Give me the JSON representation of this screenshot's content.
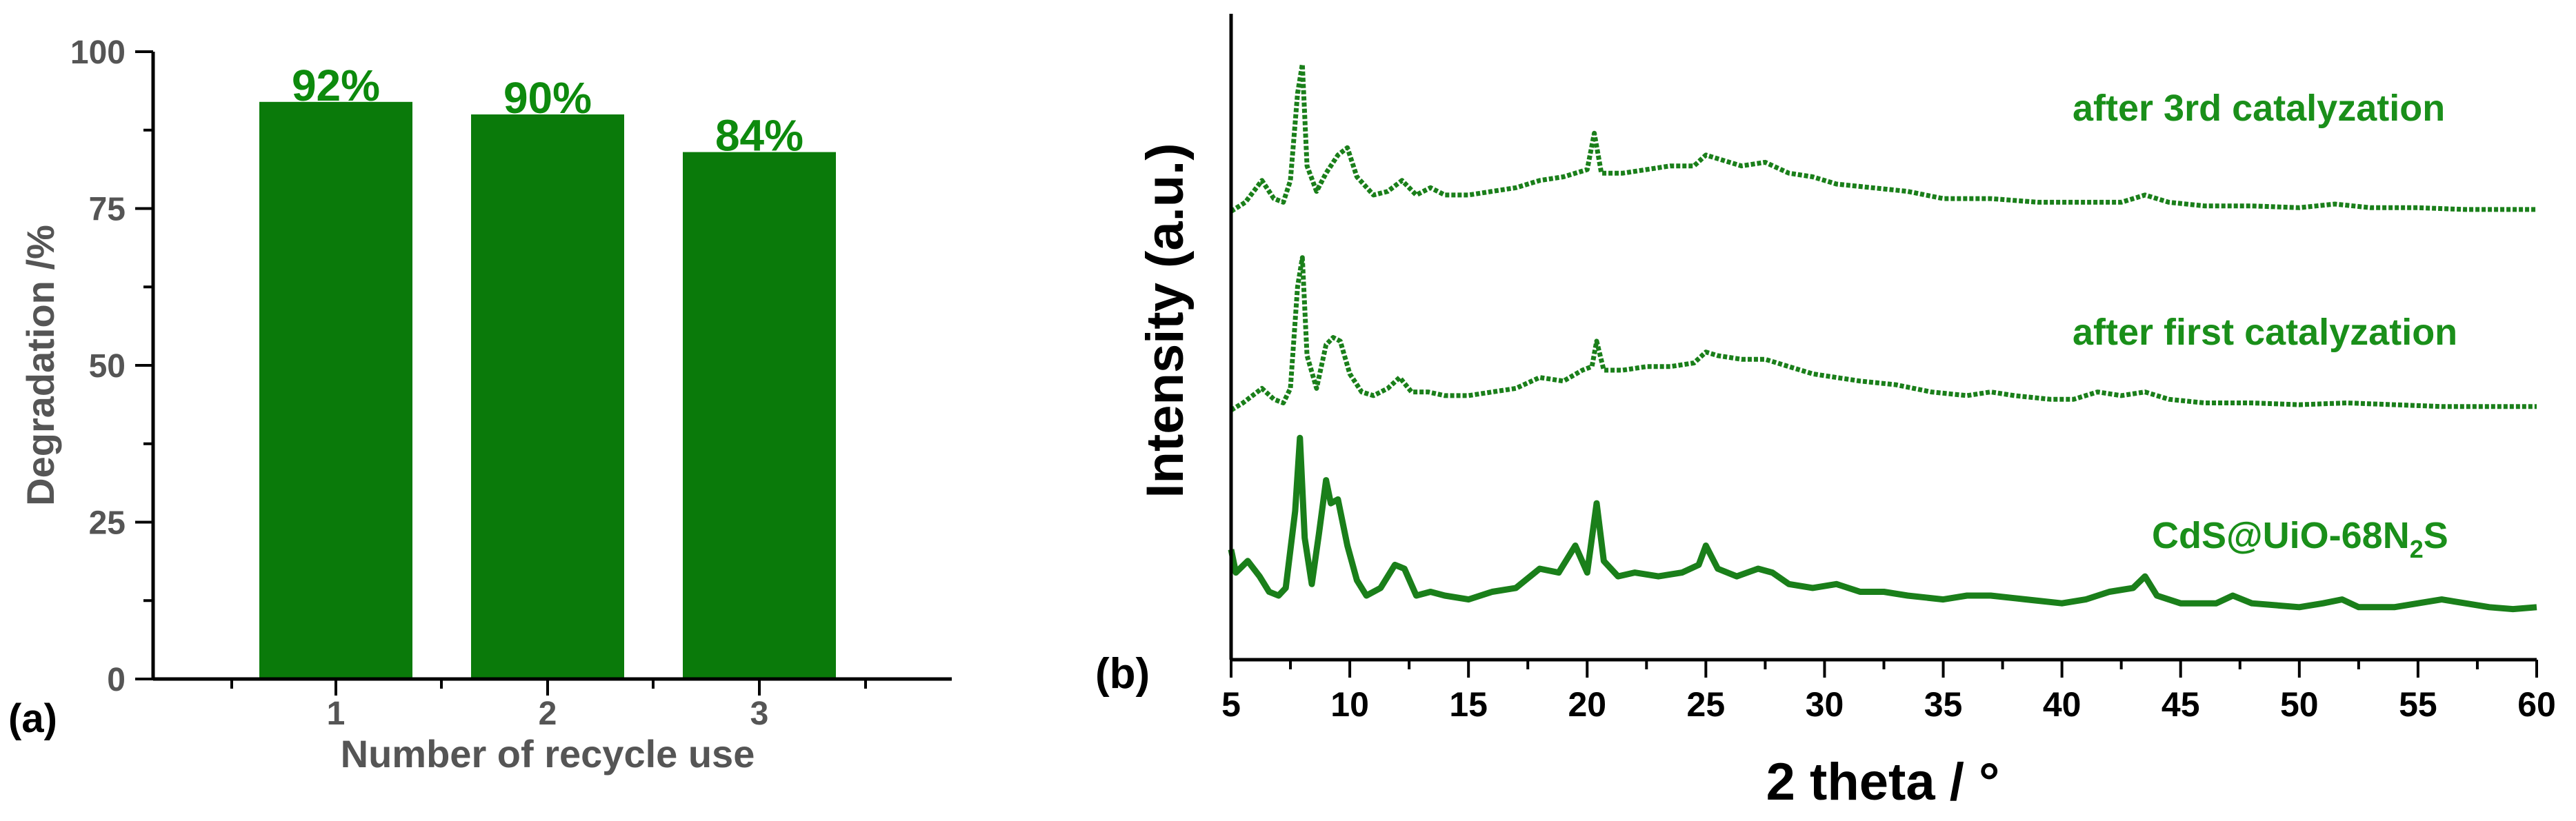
{
  "colors": {
    "bar": "#0a7a0a",
    "bar_label": "#0d8a0d",
    "curve": "#1a7f1a",
    "series_label": "#1a8f1a"
  },
  "chart_data": [
    {
      "type": "bar",
      "panel_label": "(a)",
      "xlabel": "Number of recycle use",
      "ylabel": "Degradation /%",
      "categories": [
        "1",
        "2",
        "3"
      ],
      "values": [
        92,
        90,
        84
      ],
      "data_labels": [
        "92%",
        "90%",
        "84%"
      ],
      "ylim": [
        0,
        100
      ],
      "yticks": [
        0,
        25,
        50,
        75,
        100
      ],
      "grid": false
    },
    {
      "type": "line",
      "panel_label": "(b)",
      "xlabel": "2 theta / °",
      "ylabel": "Intensity (a.u.)",
      "xlim": [
        5,
        60
      ],
      "xticks": [
        5,
        10,
        15,
        20,
        25,
        30,
        35,
        40,
        45,
        50,
        55,
        60
      ],
      "grid": false,
      "series": [
        {
          "label_prefix": "CdS@UiO-68N",
          "label_sub": "2",
          "label_suffix": "S",
          "baseline": 0.06,
          "scale": 0.9,
          "points": [
            [
              5,
              1.5
            ],
            [
              5.2,
              0.9
            ],
            [
              5.7,
              1.2
            ],
            [
              6.2,
              0.8
            ],
            [
              6.6,
              0.4
            ],
            [
              7.0,
              0.3
            ],
            [
              7.3,
              0.5
            ],
            [
              7.7,
              2.5
            ],
            [
              7.9,
              4.4
            ],
            [
              8.1,
              1.8
            ],
            [
              8.4,
              0.6
            ],
            [
              8.7,
              1.9
            ],
            [
              9.0,
              3.3
            ],
            [
              9.2,
              2.7
            ],
            [
              9.5,
              2.8
            ],
            [
              9.9,
              1.6
            ],
            [
              10.3,
              0.7
            ],
            [
              10.7,
              0.3
            ],
            [
              11.3,
              0.5
            ],
            [
              11.9,
              1.1
            ],
            [
              12.3,
              1.0
            ],
            [
              12.8,
              0.3
            ],
            [
              13.4,
              0.4
            ],
            [
              14.0,
              0.3
            ],
            [
              15,
              0.2
            ],
            [
              16,
              0.4
            ],
            [
              17,
              0.5
            ],
            [
              18,
              1.0
            ],
            [
              18.8,
              0.9
            ],
            [
              19.5,
              1.6
            ],
            [
              20.0,
              0.9
            ],
            [
              20.4,
              2.7
            ],
            [
              20.7,
              1.2
            ],
            [
              21.3,
              0.8
            ],
            [
              22,
              0.9
            ],
            [
              23,
              0.8
            ],
            [
              24,
              0.9
            ],
            [
              24.7,
              1.1
            ],
            [
              25.0,
              1.6
            ],
            [
              25.5,
              1.0
            ],
            [
              26.3,
              0.8
            ],
            [
              27.2,
              1.0
            ],
            [
              27.8,
              0.9
            ],
            [
              28.5,
              0.6
            ],
            [
              29.5,
              0.5
            ],
            [
              30.5,
              0.6
            ],
            [
              31.5,
              0.4
            ],
            [
              32.5,
              0.4
            ],
            [
              33.5,
              0.3
            ],
            [
              35,
              0.2
            ],
            [
              36,
              0.3
            ],
            [
              37,
              0.3
            ],
            [
              38.5,
              0.2
            ],
            [
              40,
              0.1
            ],
            [
              41,
              0.2
            ],
            [
              42,
              0.4
            ],
            [
              43.0,
              0.5
            ],
            [
              43.5,
              0.8
            ],
            [
              44,
              0.3
            ],
            [
              45,
              0.1
            ],
            [
              46.5,
              0.1
            ],
            [
              47.2,
              0.3
            ],
            [
              48,
              0.1
            ],
            [
              50,
              0.0
            ],
            [
              51,
              0.1
            ],
            [
              51.8,
              0.2
            ],
            [
              52.5,
              0.0
            ],
            [
              54,
              0.0
            ],
            [
              55,
              0.1
            ],
            [
              56,
              0.2
            ],
            [
              57,
              0.1
            ],
            [
              58,
              0.0
            ],
            [
              59,
              -0.05
            ],
            [
              60,
              0.0
            ]
          ]
        },
        {
          "label": "after first catalyzation",
          "baseline": 0.365,
          "scale": 0.85,
          "points": [
            [
              5,
              0.0
            ],
            [
              5.5,
              0.2
            ],
            [
              6.3,
              0.6
            ],
            [
              6.8,
              0.3
            ],
            [
              7.2,
              0.2
            ],
            [
              7.5,
              0.6
            ],
            [
              7.8,
              3.4
            ],
            [
              8.0,
              4.2
            ],
            [
              8.2,
              1.5
            ],
            [
              8.6,
              0.6
            ],
            [
              9.0,
              1.8
            ],
            [
              9.3,
              2.0
            ],
            [
              9.6,
              1.9
            ],
            [
              10.0,
              1.0
            ],
            [
              10.5,
              0.5
            ],
            [
              11,
              0.4
            ],
            [
              11.6,
              0.6
            ],
            [
              12.1,
              0.9
            ],
            [
              12.6,
              0.5
            ],
            [
              13.3,
              0.5
            ],
            [
              14,
              0.4
            ],
            [
              15,
              0.4
            ],
            [
              16,
              0.5
            ],
            [
              17,
              0.6
            ],
            [
              18,
              0.9
            ],
            [
              19,
              0.8
            ],
            [
              19.8,
              1.1
            ],
            [
              20.2,
              1.2
            ],
            [
              20.4,
              1.9
            ],
            [
              20.7,
              1.1
            ],
            [
              21.5,
              1.1
            ],
            [
              22.5,
              1.2
            ],
            [
              23.5,
              1.2
            ],
            [
              24.5,
              1.3
            ],
            [
              25.0,
              1.6
            ],
            [
              25.5,
              1.5
            ],
            [
              26.5,
              1.4
            ],
            [
              27.5,
              1.4
            ],
            [
              28.5,
              1.2
            ],
            [
              29.5,
              1.0
            ],
            [
              30.5,
              0.9
            ],
            [
              31.5,
              0.8
            ],
            [
              33,
              0.7
            ],
            [
              34.5,
              0.5
            ],
            [
              36,
              0.4
            ],
            [
              37,
              0.5
            ],
            [
              38,
              0.4
            ],
            [
              39.5,
              0.3
            ],
            [
              40.5,
              0.3
            ],
            [
              41.5,
              0.5
            ],
            [
              42.5,
              0.4
            ],
            [
              43.5,
              0.5
            ],
            [
              44.5,
              0.3
            ],
            [
              46,
              0.2
            ],
            [
              48,
              0.2
            ],
            [
              50,
              0.15
            ],
            [
              52,
              0.2
            ],
            [
              54,
              0.15
            ],
            [
              56,
              0.1
            ],
            [
              58,
              0.1
            ],
            [
              60,
              0.1
            ]
          ]
        },
        {
          "label": "after 3rd catalyzation",
          "baseline": 0.67,
          "scale": 0.85,
          "points": [
            [
              5,
              0.05
            ],
            [
              5.6,
              0.3
            ],
            [
              6.3,
              0.9
            ],
            [
              6.8,
              0.4
            ],
            [
              7.2,
              0.3
            ],
            [
              7.5,
              0.9
            ],
            [
              7.8,
              3.3
            ],
            [
              8.0,
              4.1
            ],
            [
              8.2,
              1.3
            ],
            [
              8.6,
              0.6
            ],
            [
              9.0,
              1.1
            ],
            [
              9.5,
              1.6
            ],
            [
              9.9,
              1.8
            ],
            [
              10.3,
              1.0
            ],
            [
              11,
              0.5
            ],
            [
              11.6,
              0.6
            ],
            [
              12.2,
              0.9
            ],
            [
              12.8,
              0.5
            ],
            [
              13.4,
              0.7
            ],
            [
              14,
              0.5
            ],
            [
              15,
              0.5
            ],
            [
              16,
              0.6
            ],
            [
              17,
              0.7
            ],
            [
              18,
              0.9
            ],
            [
              19,
              1.0
            ],
            [
              20.0,
              1.2
            ],
            [
              20.3,
              2.2
            ],
            [
              20.6,
              1.1
            ],
            [
              21.5,
              1.1
            ],
            [
              22.5,
              1.2
            ],
            [
              23.5,
              1.3
            ],
            [
              24.5,
              1.3
            ],
            [
              25.0,
              1.6
            ],
            [
              25.5,
              1.5
            ],
            [
              26.5,
              1.3
            ],
            [
              27.5,
              1.4
            ],
            [
              28.5,
              1.1
            ],
            [
              29.5,
              1.0
            ],
            [
              30.5,
              0.8
            ],
            [
              32,
              0.7
            ],
            [
              33.5,
              0.6
            ],
            [
              35,
              0.4
            ],
            [
              37,
              0.4
            ],
            [
              39,
              0.3
            ],
            [
              41,
              0.3
            ],
            [
              42.5,
              0.3
            ],
            [
              43.5,
              0.5
            ],
            [
              44.5,
              0.3
            ],
            [
              46,
              0.2
            ],
            [
              48,
              0.2
            ],
            [
              50,
              0.15
            ],
            [
              51.5,
              0.25
            ],
            [
              53,
              0.15
            ],
            [
              55,
              0.15
            ],
            [
              57,
              0.1
            ],
            [
              60,
              0.1
            ]
          ]
        }
      ]
    }
  ]
}
